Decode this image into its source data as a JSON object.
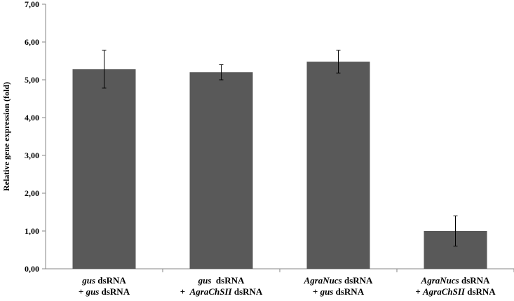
{
  "chart_data": {
    "type": "bar",
    "ylabel": "Relative gene expression (fold)",
    "ylim": [
      0,
      7
    ],
    "yticks": [
      "0,00",
      "1,00",
      "2,00",
      "3,00",
      "4,00",
      "5,00",
      "6,00",
      "7,00"
    ],
    "bar_color": "#595959",
    "grid": false,
    "categories": [
      {
        "line1": [
          {
            "t": "gus",
            "i": true
          },
          {
            "t": " dsRNA",
            "i": false
          }
        ],
        "line2": [
          {
            "t": "+ ",
            "i": false
          },
          {
            "t": "gus",
            "i": true
          },
          {
            "t": " dsRNA",
            "i": false
          }
        ]
      },
      {
        "line1": [
          {
            "t": "gus",
            "i": true
          },
          {
            "t": "  dsRNA",
            "i": false
          }
        ],
        "line2": [
          {
            "t": "+  ",
            "i": false
          },
          {
            "t": "AgraChSII",
            "i": true
          },
          {
            "t": " dsRNA",
            "i": false
          }
        ]
      },
      {
        "line1": [
          {
            "t": "AgraNucs",
            "i": true
          },
          {
            "t": " dsRNA",
            "i": false
          }
        ],
        "line2": [
          {
            "t": "+ ",
            "i": false
          },
          {
            "t": "gus",
            "i": true
          },
          {
            "t": " dsRNA",
            "i": false
          }
        ]
      },
      {
        "line1": [
          {
            "t": "AgraNucs",
            "i": true
          },
          {
            "t": " dsRNA",
            "i": false
          }
        ],
        "line2": [
          {
            "t": "+ ",
            "i": false
          },
          {
            "t": "AgraChSII",
            "i": true
          },
          {
            "t": " dsRNA",
            "i": false
          }
        ]
      }
    ],
    "values": [
      5.28,
      5.2,
      5.48,
      1.0
    ],
    "errors": [
      0.5,
      0.2,
      0.3,
      0.4
    ]
  }
}
